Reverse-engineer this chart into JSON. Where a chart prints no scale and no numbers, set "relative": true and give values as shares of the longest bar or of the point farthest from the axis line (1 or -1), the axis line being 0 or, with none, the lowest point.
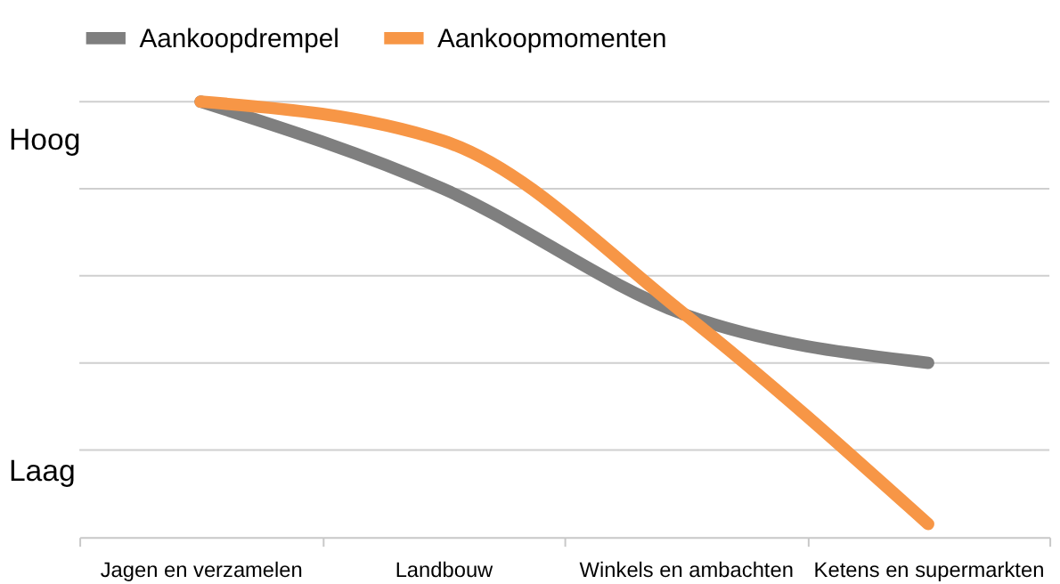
{
  "chart_data": {
    "type": "line",
    "relative": true,
    "categories": [
      "Jagen en verzamelen",
      "Landbouw",
      "Winkels en ambachten",
      "Ketens en supermarkten"
    ],
    "series": [
      {
        "name": "Aankoopdrempel",
        "color": "#7f7f7f",
        "values": [
          1.0,
          0.8,
          0.51,
          0.4
        ]
      },
      {
        "name": "Aankoopmomenten",
        "color": "#f79646",
        "values": [
          1.0,
          0.91,
          0.51,
          0.03
        ]
      }
    ],
    "annotations": [
      "Hoog",
      "Laag"
    ],
    "grid": true,
    "legend": "top",
    "marker": "none",
    "line_style": "solid"
  }
}
